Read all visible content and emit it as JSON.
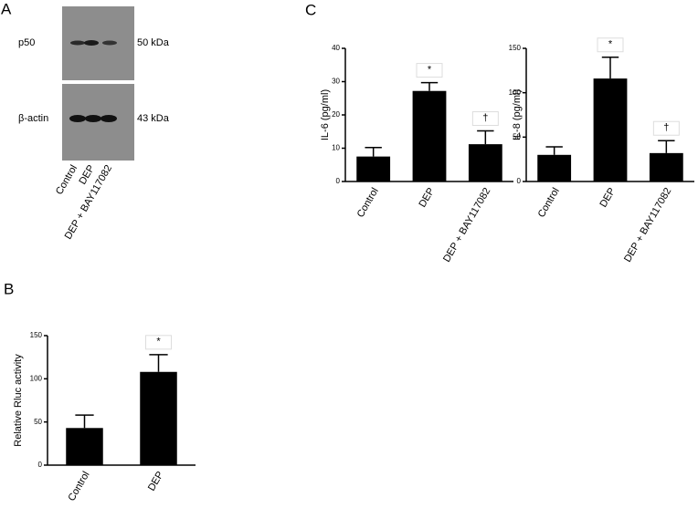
{
  "panel_labels": [
    "A",
    "B",
    "C"
  ],
  "blot": {
    "rows": [
      {
        "label": "p50",
        "size": "50 kDa"
      },
      {
        "label": "β-actin",
        "size": "43 kDa"
      }
    ],
    "lanes": [
      "Control",
      "DEP",
      "DEP + BAY117082"
    ]
  },
  "chart_data": [
    {
      "type": "bar",
      "y_label": "IL-6 (pg/ml)",
      "categories": [
        "Control",
        "DEP",
        "DEP + BAY117082"
      ],
      "values": [
        7.5,
        27.2,
        11.2
      ],
      "errors": [
        2.7,
        2.5,
        4
      ],
      "annotations": [
        null,
        "*",
        "†"
      ],
      "color": "#000000",
      "ylim": [
        0,
        40
      ],
      "yticks": [
        0,
        10,
        20,
        30,
        40
      ]
    },
    {
      "type": "bar",
      "y_label": "IL-8 (pg/ml)",
      "categories": [
        "Control",
        "DEP",
        "DEP + BAY117082"
      ],
      "values": [
        30,
        116,
        32
      ],
      "errors": [
        9,
        24,
        14
      ],
      "annotations": [
        null,
        "*",
        "†"
      ],
      "color": "#000000",
      "ylim": [
        0,
        150
      ],
      "yticks": [
        0,
        50,
        100,
        150
      ]
    },
    {
      "type": "bar",
      "y_label": "Relative Rluc activity",
      "categories": [
        "Control",
        "DEP"
      ],
      "values": [
        43,
        108
      ],
      "errors": [
        15,
        20
      ],
      "annotations": [
        null,
        "*"
      ],
      "color": "#000000",
      "ylim": [
        0,
        150
      ],
      "yticks": [
        0,
        50,
        100,
        150
      ]
    }
  ]
}
